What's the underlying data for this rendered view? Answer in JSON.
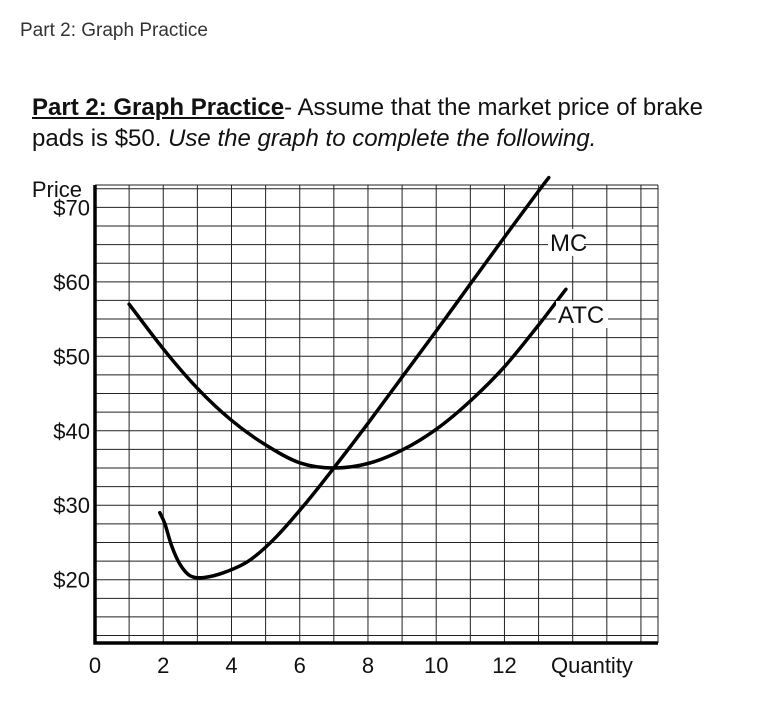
{
  "page": {
    "title": "Part 2: Graph Practice"
  },
  "instructions": {
    "lead": "Part 2: Graph Practice",
    "rest": "- Assume that the market price of brake pads is $50. ",
    "italic": "Use the graph to complete the following."
  },
  "chart_data": {
    "type": "line",
    "ylabel": "Price",
    "xlabel": "Quantity",
    "x_ticks": [
      "0",
      "2",
      "4",
      "6",
      "8",
      "10",
      "12"
    ],
    "y_ticks": [
      "$70",
      "$60",
      "$50",
      "$40",
      "$30",
      "$20"
    ],
    "y_tick_values": [
      70,
      60,
      50,
      40,
      30,
      20
    ],
    "xlim": [
      0,
      16.5
    ],
    "ylim": [
      11.5,
      73
    ],
    "grid": true,
    "series": [
      {
        "name": "MC",
        "x": [
          1.9,
          2.05,
          2.25,
          2.5,
          2.8,
          3.2,
          3.8,
          4.5,
          5.3,
          6.2,
          7.0,
          8.0,
          9.0,
          10.0,
          11.0,
          12.0,
          13.0,
          13.3
        ],
        "y": [
          29,
          27.5,
          24.5,
          22,
          20.5,
          20.3,
          21.0,
          22.5,
          25.7,
          30.4,
          35.0,
          41.0,
          47.2,
          53.4,
          59.7,
          66.0,
          72.2,
          74.0
        ]
      },
      {
        "name": "ATC",
        "x": [
          1.0,
          2.0,
          3.0,
          4.0,
          5.0,
          6.0,
          7.0,
          8.0,
          9.0,
          10.0,
          11.0,
          12.0,
          13.0,
          13.8
        ],
        "y": [
          57.0,
          51.0,
          45.7,
          41.4,
          38.1,
          35.7,
          35.0,
          35.6,
          37.4,
          40.2,
          44.0,
          48.6,
          54.2,
          59.0
        ]
      }
    ]
  }
}
